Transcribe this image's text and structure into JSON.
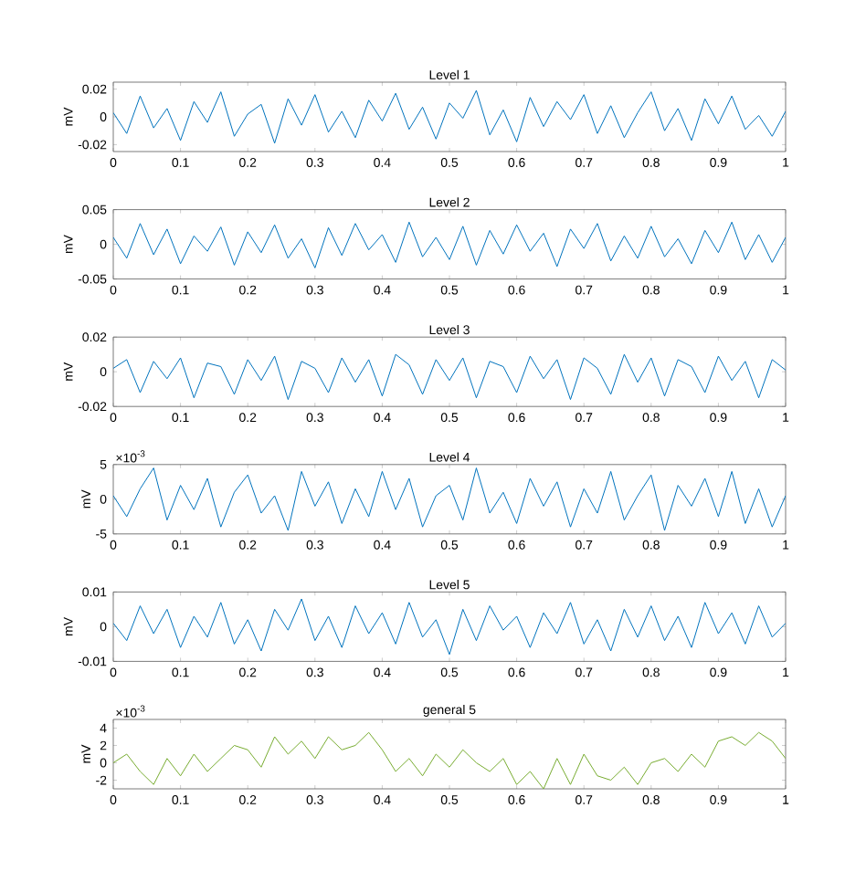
{
  "chart_data": [
    {
      "type": "line",
      "title": "Level 1",
      "ylabel": "mV",
      "xlim": [
        0,
        1
      ],
      "ylim": [
        -0.025,
        0.025
      ],
      "xticks": [
        0,
        0.1,
        0.2,
        0.3,
        0.4,
        0.5,
        0.6,
        0.7,
        0.8,
        0.9,
        1
      ],
      "yticks": [
        -0.02,
        0,
        0.02
      ],
      "x": [
        0,
        0.02,
        0.04,
        0.06,
        0.08,
        0.1,
        0.12,
        0.14,
        0.16,
        0.18,
        0.2,
        0.22,
        0.24,
        0.26,
        0.28,
        0.3,
        0.32,
        0.34,
        0.36,
        0.38,
        0.4,
        0.42,
        0.44,
        0.46,
        0.48,
        0.5,
        0.52,
        0.54,
        0.56,
        0.58,
        0.6,
        0.62,
        0.64,
        0.66,
        0.68,
        0.7,
        0.72,
        0.74,
        0.76,
        0.78,
        0.8,
        0.82,
        0.84,
        0.86,
        0.88,
        0.9,
        0.92,
        0.94,
        0.96,
        0.98,
        1
      ],
      "series": [
        {
          "color": "#0072bd",
          "values": [
            0.003,
            -0.012,
            0.015,
            -0.008,
            0.006,
            -0.017,
            0.011,
            -0.004,
            0.018,
            -0.014,
            0.002,
            0.009,
            -0.019,
            0.013,
            -0.006,
            0.016,
            -0.011,
            0.004,
            -0.015,
            0.012,
            -0.003,
            0.017,
            -0.009,
            0.007,
            -0.016,
            0.01,
            -0.001,
            0.019,
            -0.013,
            0.005,
            -0.018,
            0.014,
            -0.007,
            0.011,
            -0.002,
            0.016,
            -0.012,
            0.008,
            -0.015,
            0.003,
            0.018,
            -0.01,
            0.006,
            -0.017,
            0.013,
            -0.005,
            0.015,
            -0.009,
            0.001,
            -0.014,
            0.004
          ]
        }
      ]
    },
    {
      "type": "line",
      "title": "Level 2",
      "ylabel": "mV",
      "xlim": [
        0,
        1
      ],
      "ylim": [
        -0.05,
        0.05
      ],
      "xticks": [
        0,
        0.1,
        0.2,
        0.3,
        0.4,
        0.5,
        0.6,
        0.7,
        0.8,
        0.9,
        1
      ],
      "yticks": [
        -0.05,
        0,
        0.05
      ],
      "x": [
        0,
        0.02,
        0.04,
        0.06,
        0.08,
        0.1,
        0.12,
        0.14,
        0.16,
        0.18,
        0.2,
        0.22,
        0.24,
        0.26,
        0.28,
        0.3,
        0.32,
        0.34,
        0.36,
        0.38,
        0.4,
        0.42,
        0.44,
        0.46,
        0.48,
        0.5,
        0.52,
        0.54,
        0.56,
        0.58,
        0.6,
        0.62,
        0.64,
        0.66,
        0.68,
        0.7,
        0.72,
        0.74,
        0.76,
        0.78,
        0.8,
        0.82,
        0.84,
        0.86,
        0.88,
        0.9,
        0.92,
        0.94,
        0.96,
        0.98,
        1
      ],
      "series": [
        {
          "color": "#0072bd",
          "values": [
            0.01,
            -0.02,
            0.03,
            -0.015,
            0.022,
            -0.028,
            0.012,
            -0.01,
            0.025,
            -0.03,
            0.018,
            -0.012,
            0.028,
            -0.02,
            0.008,
            -0.034,
            0.024,
            -0.016,
            0.03,
            -0.008,
            0.014,
            -0.026,
            0.032,
            -0.018,
            0.01,
            -0.022,
            0.026,
            -0.03,
            0.02,
            -0.014,
            0.028,
            -0.01,
            0.016,
            -0.032,
            0.022,
            -0.006,
            0.03,
            -0.024,
            0.012,
            -0.02,
            0.026,
            -0.018,
            0.008,
            -0.028,
            0.02,
            -0.012,
            0.032,
            -0.022,
            0.014,
            -0.026,
            0.01
          ]
        }
      ]
    },
    {
      "type": "line",
      "title": "Level 3",
      "ylabel": "mV",
      "xlim": [
        0,
        1
      ],
      "ylim": [
        -0.02,
        0.02
      ],
      "xticks": [
        0,
        0.1,
        0.2,
        0.3,
        0.4,
        0.5,
        0.6,
        0.7,
        0.8,
        0.9,
        1
      ],
      "yticks": [
        -0.02,
        0,
        0.02
      ],
      "x": [
        0,
        0.02,
        0.04,
        0.06,
        0.08,
        0.1,
        0.12,
        0.14,
        0.16,
        0.18,
        0.2,
        0.22,
        0.24,
        0.26,
        0.28,
        0.3,
        0.32,
        0.34,
        0.36,
        0.38,
        0.4,
        0.42,
        0.44,
        0.46,
        0.48,
        0.5,
        0.52,
        0.54,
        0.56,
        0.58,
        0.6,
        0.62,
        0.64,
        0.66,
        0.68,
        0.7,
        0.72,
        0.74,
        0.76,
        0.78,
        0.8,
        0.82,
        0.84,
        0.86,
        0.88,
        0.9,
        0.92,
        0.94,
        0.96,
        0.98,
        1
      ],
      "series": [
        {
          "color": "#0072bd",
          "values": [
            0.002,
            0.007,
            -0.012,
            0.006,
            -0.004,
            0.008,
            -0.015,
            0.005,
            0.003,
            -0.013,
            0.007,
            -0.005,
            0.009,
            -0.016,
            0.006,
            0.002,
            -0.012,
            0.008,
            -0.006,
            0.007,
            -0.014,
            0.01,
            0.004,
            -0.013,
            0.007,
            -0.005,
            0.008,
            -0.015,
            0.006,
            0.003,
            -0.012,
            0.009,
            -0.004,
            0.007,
            -0.016,
            0.008,
            0.002,
            -0.013,
            0.01,
            -0.006,
            0.008,
            -0.014,
            0.007,
            0.003,
            -0.012,
            0.009,
            -0.005,
            0.006,
            -0.015,
            0.007,
            0.001
          ]
        }
      ]
    },
    {
      "type": "line",
      "title": "Level 4",
      "ylabel": "mV",
      "xlim": [
        0,
        1
      ],
      "ylim": [
        -5,
        5
      ],
      "xticks": [
        0,
        0.1,
        0.2,
        0.3,
        0.4,
        0.5,
        0.6,
        0.7,
        0.8,
        0.9,
        1
      ],
      "yticks": [
        -5,
        0,
        5
      ],
      "annotations": [
        "×10$^{-3}$"
      ],
      "x": [
        0,
        0.02,
        0.04,
        0.06,
        0.08,
        0.1,
        0.12,
        0.14,
        0.16,
        0.18,
        0.2,
        0.22,
        0.24,
        0.26,
        0.28,
        0.3,
        0.32,
        0.34,
        0.36,
        0.38,
        0.4,
        0.42,
        0.44,
        0.46,
        0.48,
        0.5,
        0.52,
        0.54,
        0.56,
        0.58,
        0.6,
        0.62,
        0.64,
        0.66,
        0.68,
        0.7,
        0.72,
        0.74,
        0.76,
        0.78,
        0.8,
        0.82,
        0.84,
        0.86,
        0.88,
        0.9,
        0.92,
        0.94,
        0.96,
        0.98,
        1
      ],
      "series": [
        {
          "color": "#0072bd",
          "values": [
            0.5,
            -2.5,
            1.5,
            4.5,
            -3,
            2,
            -1.5,
            3,
            -4,
            1,
            3.5,
            -2,
            0.5,
            -4.5,
            4,
            -1,
            2.5,
            -3.5,
            1.5,
            -2.5,
            4,
            -1.5,
            3,
            -4,
            0.5,
            2,
            -3,
            4.5,
            -2,
            1,
            -3.5,
            3,
            -1,
            2.5,
            -4,
            1.5,
            -2,
            4,
            -3,
            0.5,
            3.5,
            -4.5,
            2,
            -1,
            3,
            -2.5,
            4,
            -3.5,
            1.5,
            -4,
            0.5
          ]
        }
      ]
    },
    {
      "type": "line",
      "title": "Level 5",
      "ylabel": "mV",
      "xlim": [
        0,
        1
      ],
      "ylim": [
        -0.01,
        0.01
      ],
      "xticks": [
        0,
        0.1,
        0.2,
        0.3,
        0.4,
        0.5,
        0.6,
        0.7,
        0.8,
        0.9,
        1
      ],
      "yticks": [
        -0.01,
        0,
        0.01
      ],
      "x": [
        0,
        0.02,
        0.04,
        0.06,
        0.08,
        0.1,
        0.12,
        0.14,
        0.16,
        0.18,
        0.2,
        0.22,
        0.24,
        0.26,
        0.28,
        0.3,
        0.32,
        0.34,
        0.36,
        0.38,
        0.4,
        0.42,
        0.44,
        0.46,
        0.48,
        0.5,
        0.52,
        0.54,
        0.56,
        0.58,
        0.6,
        0.62,
        0.64,
        0.66,
        0.68,
        0.7,
        0.72,
        0.74,
        0.76,
        0.78,
        0.8,
        0.82,
        0.84,
        0.86,
        0.88,
        0.9,
        0.92,
        0.94,
        0.96,
        0.98,
        1
      ],
      "series": [
        {
          "color": "#0072bd",
          "values": [
            0.001,
            -0.004,
            0.006,
            -0.002,
            0.005,
            -0.006,
            0.003,
            -0.003,
            0.007,
            -0.005,
            0.002,
            -0.007,
            0.005,
            -0.001,
            0.008,
            -0.004,
            0.003,
            -0.006,
            0.006,
            -0.002,
            0.004,
            -0.005,
            0.007,
            -0.003,
            0.002,
            -0.008,
            0.005,
            -0.004,
            0.006,
            -0.001,
            0.003,
            -0.006,
            0.004,
            -0.002,
            0.007,
            -0.005,
            0.002,
            -0.007,
            0.005,
            -0.003,
            0.006,
            -0.004,
            0.003,
            -0.006,
            0.007,
            -0.002,
            0.004,
            -0.005,
            0.006,
            -0.003,
            0.001
          ]
        }
      ]
    },
    {
      "type": "line",
      "title": "general 5",
      "ylabel": "mV",
      "xlim": [
        0,
        1
      ],
      "ylim": [
        -3,
        5
      ],
      "xticks": [
        0,
        0.1,
        0.2,
        0.3,
        0.4,
        0.5,
        0.6,
        0.7,
        0.8,
        0.9,
        1
      ],
      "yticks": [
        -2,
        0,
        2,
        4
      ],
      "annotations": [
        "×10$^{-3}$"
      ],
      "x": [
        0,
        0.02,
        0.04,
        0.06,
        0.08,
        0.1,
        0.12,
        0.14,
        0.16,
        0.18,
        0.2,
        0.22,
        0.24,
        0.26,
        0.28,
        0.3,
        0.32,
        0.34,
        0.36,
        0.38,
        0.4,
        0.42,
        0.44,
        0.46,
        0.48,
        0.5,
        0.52,
        0.54,
        0.56,
        0.58,
        0.6,
        0.62,
        0.64,
        0.66,
        0.68,
        0.7,
        0.72,
        0.74,
        0.76,
        0.78,
        0.8,
        0.82,
        0.84,
        0.86,
        0.88,
        0.9,
        0.92,
        0.94,
        0.96,
        0.98,
        1
      ],
      "series": [
        {
          "color": "#77ac30",
          "values": [
            0,
            1,
            -1,
            -2.5,
            0.5,
            -1.5,
            1,
            -1,
            0.5,
            2,
            1.5,
            -0.5,
            3,
            1,
            2.5,
            0.5,
            3,
            1.5,
            2,
            3.5,
            1.5,
            -1,
            0.5,
            -1.5,
            1,
            -0.5,
            1.5,
            0,
            -1,
            0.5,
            -2.5,
            -1,
            -3,
            0.5,
            -2.5,
            1,
            -1.5,
            -2,
            -0.5,
            -2.5,
            0,
            0.5,
            -1,
            1,
            -0.5,
            2.5,
            3,
            2,
            3.5,
            2.5,
            0.5
          ]
        }
      ]
    }
  ]
}
